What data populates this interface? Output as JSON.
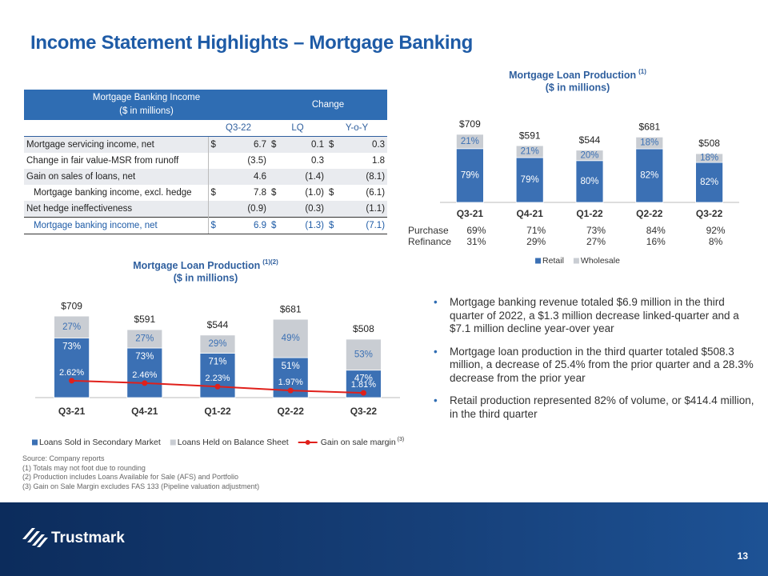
{
  "title": "Income Statement Highlights – Mortgage Banking",
  "table": {
    "header": {
      "title": [
        "Mortgage Banking Income",
        "($ in millions)"
      ],
      "change": "Change",
      "columns": [
        "Q3-22",
        "LQ",
        "Y-o-Y"
      ]
    },
    "rows": [
      {
        "label": "Mortgage servicing income, net",
        "cells": [
          [
            "$",
            "6.7"
          ],
          [
            "$",
            "0.1"
          ],
          [
            "$",
            "0.3"
          ]
        ]
      },
      {
        "label": "Change in fair value-MSR from runoff",
        "cells": [
          [
            "(3.5)"
          ],
          [
            "0.3"
          ],
          [
            "1.8"
          ]
        ]
      },
      {
        "label": "Gain on sales of loans, net",
        "cells": [
          [
            "4.6"
          ],
          [
            "(1.4)"
          ],
          [
            "(8.1)"
          ]
        ]
      },
      {
        "label": "Mortgage banking income, excl. hedge",
        "indent": true,
        "cells": [
          [
            "$",
            "7.8"
          ],
          [
            "$",
            "(1.0)"
          ],
          [
            "$",
            "(6.1)"
          ]
        ]
      },
      {
        "label": "Net hedge ineffectiveness",
        "cells": [
          [
            "(0.9)"
          ],
          [
            "(0.3)"
          ],
          [
            "(1.1)"
          ]
        ]
      },
      {
        "label": "Mortgage banking income, net",
        "indent": true,
        "highlight": true,
        "cells": [
          [
            "$",
            "6.9"
          ],
          [
            "$",
            "(1.3)"
          ],
          [
            "$",
            "(7.1)"
          ]
        ]
      }
    ]
  },
  "chart_data": [
    {
      "type": "bar",
      "stacked": true,
      "title": "Mortgage Loan Production",
      "title_note": "(1)",
      "subtitle": "($ in millions)",
      "categories": [
        "Q3-21",
        "Q4-21",
        "Q1-22",
        "Q2-22",
        "Q3-22"
      ],
      "ylim": [
        0,
        800
      ],
      "totals": {
        "values": [
          709,
          591,
          544,
          681,
          508
        ],
        "value_labels": [
          "$709",
          "$591",
          "$544",
          "$681",
          "$508"
        ]
      },
      "series": [
        {
          "name": "Retail",
          "color": "#3b70b4",
          "label_color": "#ffffff",
          "values": [
            79,
            79,
            80,
            82,
            82
          ],
          "value_labels": [
            "79%",
            "79%",
            "80%",
            "82%",
            "82%"
          ]
        },
        {
          "name": "Wholesale",
          "color": "#c9cdd3",
          "label_color": "#3b70b4",
          "values": [
            21,
            21,
            20,
            18,
            18
          ],
          "value_labels": [
            "21%",
            "21%",
            "20%",
            "18%",
            "18%"
          ]
        }
      ],
      "rows": [
        {
          "name": "Purchase",
          "values": [
            69,
            71,
            73,
            84,
            92
          ],
          "value_labels": [
            "69%",
            "71%",
            "73%",
            "84%",
            "92%"
          ]
        },
        {
          "name": "Refinance",
          "values": [
            31,
            29,
            27,
            16,
            8
          ],
          "value_labels": [
            "31%",
            "29%",
            "27%",
            "16%",
            "8%"
          ]
        }
      ],
      "legend": "bottom"
    },
    {
      "type": "bar",
      "stacked": true,
      "title": "Mortgage Loan Production",
      "title_note": "(1)(2)",
      "subtitle": "($ in millions)",
      "categories": [
        "Q3-21",
        "Q4-21",
        "Q1-22",
        "Q2-22",
        "Q3-22"
      ],
      "ylim": [
        0,
        800
      ],
      "y2lim": [
        1.5,
        7.6
      ],
      "totals": {
        "values": [
          709,
          591,
          544,
          681,
          508
        ],
        "value_labels": [
          "$709",
          "$591",
          "$544",
          "$681",
          "$508"
        ]
      },
      "series": [
        {
          "name": "Loans Sold in Secondary Market",
          "color": "#3b70b4",
          "label_color": "#ffffff",
          "values": [
            73,
            73,
            71,
            51,
            47
          ],
          "value_labels": [
            "73%",
            "73%",
            "71%",
            "51%",
            "47%"
          ]
        },
        {
          "name": "Loans Held on Balance Sheet",
          "color": "#c9cdd3",
          "label_color": "#3b70b4",
          "values": [
            27,
            27,
            29,
            49,
            53
          ],
          "value_labels": [
            "27%",
            "27%",
            "29%",
            "49%",
            "53%"
          ]
        },
        {
          "name": "Gain on sale margin",
          "name_note": "(3)",
          "type": "line",
          "axis": "y2",
          "color": "#e0201b",
          "label_color": "#ffffff",
          "values": [
            2.62,
            2.46,
            2.23,
            1.97,
            1.81
          ],
          "value_labels": [
            "2.62%",
            "2.46%",
            "2.23%",
            "1.97%",
            "1.81%"
          ]
        }
      ],
      "legend": "bottom"
    }
  ],
  "bullets": [
    "Mortgage banking revenue totaled $6.9 million in the third quarter of 2022, a $1.3 million decrease linked-quarter and a $7.1 million decline year-over year",
    "Mortgage loan production in the third quarter totaled $508.3 million, a decrease of 25.4% from the prior quarter and a 28.3% decrease from the prior year",
    "Retail production represented 82% of volume, or $414.4 million, in the third quarter"
  ],
  "footnotes": [
    "Source: Company reports",
    "(1) Totals may not foot due to rounding",
    "(2) Production includes Loans Available for Sale (AFS) and Portfolio",
    "(3) Gain on Sale Margin excludes FAS 133 (Pipeline valuation adjustment)"
  ],
  "logo": "Trustmark",
  "page_number": "13"
}
